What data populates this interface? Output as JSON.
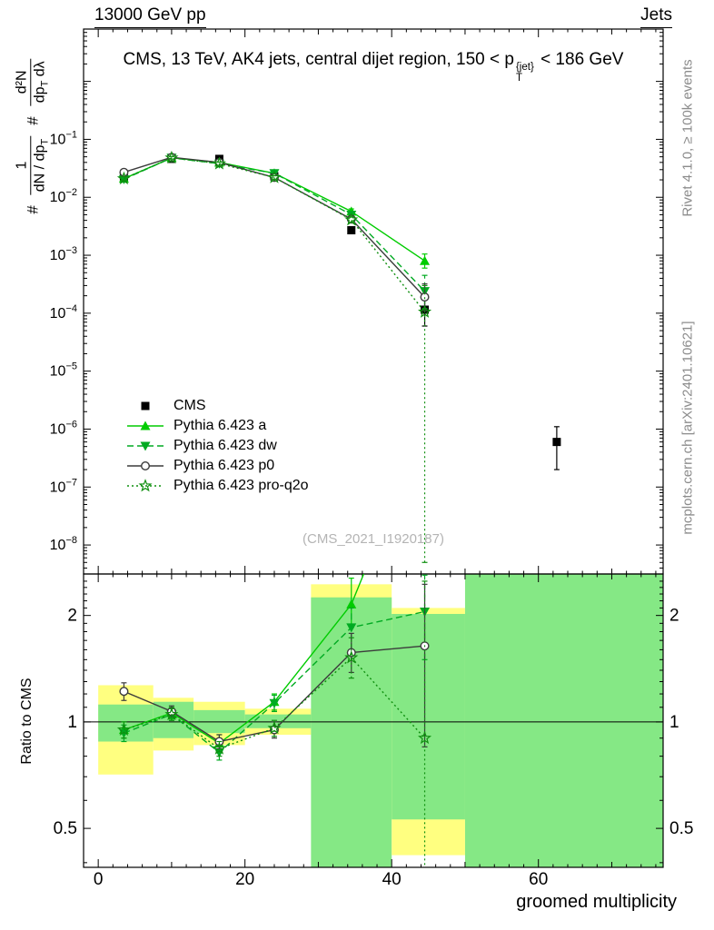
{
  "header": {
    "left": "13000 GeV pp",
    "right": "Jets"
  },
  "titles": {
    "main_pre": "CMS, 13 TeV, AK4 jets, central dijet region, 150 < p",
    "main_sup": "{jet}",
    "main_sub": "T",
    "main_post": "< 186 GeV",
    "watermark": "(CMS_2021_I1920187)",
    "rivet": "Rivet 4.1.0, ≥ 100k events",
    "mcplots": "mcplots.cern.ch [arXiv:2401.10621]",
    "xlabel": "groomed multiplicity",
    "ratio_ylabel": "Ratio to CMS"
  },
  "ylabel": {
    "h1": "#",
    "num1": "1",
    "den1a": "dN / dp",
    "den1b": "T",
    "h2": "#",
    "num2": "d²N",
    "den2a": "dp",
    "den2b": "T",
    "den2c": " dλ"
  },
  "chart_data": {
    "type": "line",
    "xlabel": "groomed multiplicity",
    "xlim": [
      -2,
      77
    ],
    "x_ticks": {
      "major": [
        0,
        20,
        40,
        60
      ],
      "medium_step": 10,
      "minor_step": 2
    },
    "band_colors": {
      "yellow": "#ffff80",
      "green": "#85e885"
    },
    "main": {
      "yscale": "log",
      "ylim": [
        3.16e-09,
        8
      ],
      "ytick_label_exponents": [
        -1,
        -2,
        -3,
        -4,
        -5,
        -6,
        -7,
        -8
      ],
      "series": [
        {
          "name": "CMS",
          "color": "#000000",
          "line": "none",
          "marker": "square",
          "fill": "filled",
          "x": [
            3.5,
            10,
            16.5,
            24,
            34.5,
            44.5,
            62.5
          ],
          "y": [
            0.022,
            0.046,
            0.046,
            0.023,
            0.0027,
            0.000115,
            6e-07
          ],
          "yerr": [
            [
              0.0203,
              0.0238
            ],
            [
              0.0435,
              0.0485
            ],
            [
              0.0435,
              0.0485
            ],
            [
              0.0215,
              0.0246
            ],
            [
              0.00235,
              0.0031
            ],
            [
              6e-05,
              0.00017
            ],
            [
              2e-07,
              1.1e-06
            ]
          ]
        },
        {
          "name": "Pythia 6.423 a",
          "color": "#00cc00",
          "line": "solid",
          "marker": "triangle-up",
          "fill": "filled",
          "x": [
            3.5,
            10,
            16.5,
            24,
            34.5,
            44.5
          ],
          "y": [
            0.021,
            0.048,
            0.04,
            0.026,
            0.0057,
            0.0008
          ],
          "yerr": [
            [
              0.0195,
              0.0225
            ],
            [
              0.0455,
              0.0505
            ],
            [
              0.0375,
              0.0425
            ],
            [
              0.0245,
              0.0275
            ],
            [
              0.0052,
              0.0063
            ],
            [
              0.0006,
              0.00105
            ]
          ]
        },
        {
          "name": "Pythia 6.423 dw",
          "color": "#00aa22",
          "line": "dashed",
          "marker": "triangle-down",
          "fill": "filled",
          "x": [
            3.5,
            10,
            16.5,
            24,
            34.5,
            44.5
          ],
          "y": [
            0.0205,
            0.048,
            0.038,
            0.026,
            0.005,
            0.00024
          ],
          "yerr": [
            [
              0.019,
              0.022
            ],
            [
              0.0455,
              0.0505
            ],
            [
              0.0355,
              0.0405
            ],
            [
              0.0245,
              0.0275
            ],
            [
              0.0046,
              0.0055
            ],
            [
              0.00012,
              0.00045
            ]
          ]
        },
        {
          "name": "Pythia 6.423 p0",
          "color": "#3c3c3c",
          "line": "solid",
          "marker": "circle",
          "fill": "open",
          "x": [
            3.5,
            10,
            16.5,
            24,
            34.5,
            44.5
          ],
          "y": [
            0.027,
            0.049,
            0.04,
            0.022,
            0.0042,
            0.00019
          ],
          "yerr": [
            [
              0.0255,
              0.0285
            ],
            [
              0.0465,
              0.0515
            ],
            [
              0.0375,
              0.0425
            ],
            [
              0.0205,
              0.0235
            ],
            [
              0.0039,
              0.0046
            ],
            [
              0.00011,
              0.00032
            ]
          ]
        },
        {
          "name": "Pythia 6.423 pro-q2o",
          "color": "#0f8f0f",
          "line": "dotted",
          "marker": "star",
          "fill": "open",
          "x": [
            3.5,
            10,
            16.5,
            24,
            34.5,
            44.5
          ],
          "y": [
            0.021,
            0.048,
            0.038,
            0.022,
            0.0041,
            0.000105
          ],
          "yerr": [
            [
              0.0195,
              0.0225
            ],
            [
              0.0455,
              0.0505
            ],
            [
              0.0355,
              0.0405
            ],
            [
              0.0205,
              0.0235
            ],
            [
              0.0037,
              0.0046
            ],
            [
              5e-09,
              0.0003
            ]
          ]
        }
      ]
    },
    "ratio": {
      "yscale": "log",
      "ylim": [
        0.388,
        2.62
      ],
      "yticks": [
        0.5,
        1,
        2
      ],
      "ref_line": 1,
      "bands": [
        {
          "x0": 0,
          "x1": 7.5,
          "yellow": [
            0.71,
            1.27
          ],
          "green": [
            0.88,
            1.12
          ]
        },
        {
          "x0": 7.5,
          "x1": 13,
          "yellow": [
            0.83,
            1.17
          ],
          "green": [
            0.9,
            1.14
          ]
        },
        {
          "x0": 13,
          "x1": 20,
          "yellow": [
            0.86,
            1.14
          ],
          "green": [
            0.93,
            1.08
          ]
        },
        {
          "x0": 20,
          "x1": 29,
          "yellow": [
            0.92,
            1.09
          ],
          "green": [
            0.96,
            1.05
          ]
        },
        {
          "x0": 29,
          "x1": 40,
          "yellow": [
            1.7,
            2.45
          ],
          "green": [
            0.388,
            2.25
          ]
        },
        {
          "x0": 40,
          "x1": 50,
          "yellow": [
            0.42,
            2.1
          ],
          "green": [
            0.53,
            2.02
          ]
        },
        {
          "x0": 50,
          "x1": 77,
          "yellow": null,
          "green": [
            0.388,
            2.62
          ]
        }
      ],
      "series": [
        {
          "name": "Pythia 6.423 a",
          "color": "#00cc00",
          "line": "solid",
          "marker": "triangle-up",
          "fill": "filled",
          "x": [
            3.5,
            10,
            16.5,
            24,
            34.5,
            44.5
          ],
          "y": [
            0.95,
            1.06,
            0.87,
            1.14,
            2.15,
            6.96
          ],
          "yerr": [
            [
              0.9,
              1.0
            ],
            [
              1.02,
              1.1
            ],
            [
              0.82,
              0.92
            ],
            [
              1.08,
              1.2
            ],
            [
              1.85,
              2.55
            ],
            null
          ]
        },
        {
          "name": "Pythia 6.423 dw",
          "color": "#00aa22",
          "line": "dashed",
          "marker": "triangle-down",
          "fill": "filled",
          "x": [
            3.5,
            10,
            16.5,
            24,
            34.5,
            44.5
          ],
          "y": [
            0.93,
            1.05,
            0.82,
            1.13,
            1.85,
            2.05
          ],
          "yerr": [
            [
              0.88,
              0.98
            ],
            [
              1.01,
              1.09
            ],
            [
              0.78,
              0.86
            ],
            [
              1.07,
              1.19
            ],
            [
              1.6,
              2.1
            ],
            [
              1.5,
              2.6
            ]
          ]
        },
        {
          "name": "Pythia 6.423 p0",
          "color": "#3c3c3c",
          "line": "solid",
          "marker": "circle",
          "fill": "open",
          "x": [
            3.5,
            10,
            16.5,
            24,
            34.5,
            44.5
          ],
          "y": [
            1.22,
            1.07,
            0.88,
            0.95,
            1.57,
            1.64
          ],
          "yerr": [
            [
              1.15,
              1.29
            ],
            [
              1.03,
              1.11
            ],
            [
              0.84,
              0.92
            ],
            [
              0.9,
              1.0
            ],
            [
              1.38,
              1.78
            ],
            [
              0.85,
              2.45
            ]
          ]
        },
        {
          "name": "Pythia 6.423 pro-q2o",
          "color": "#0f8f0f",
          "line": "dotted",
          "marker": "star",
          "fill": "open",
          "x": [
            3.5,
            10,
            16.5,
            24,
            34.5,
            44.5
          ],
          "y": [
            0.95,
            1.05,
            0.84,
            0.96,
            1.52,
            0.9
          ],
          "yerr": [
            [
              0.9,
              1.0
            ],
            [
              1.01,
              1.09
            ],
            [
              0.8,
              0.88
            ],
            [
              0.91,
              1.01
            ],
            [
              1.33,
              1.73
            ],
            [
              0.35,
              2.5
            ]
          ]
        }
      ]
    }
  }
}
